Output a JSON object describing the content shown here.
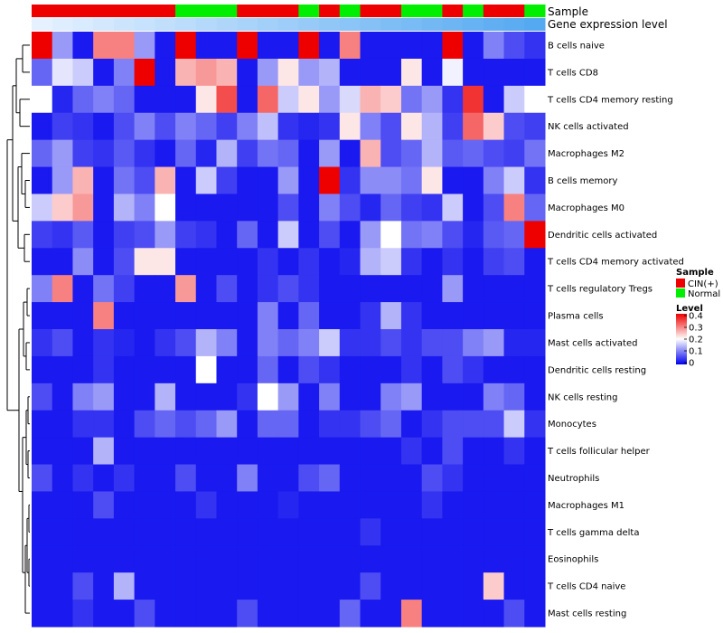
{
  "chart_data": {
    "type": "heatmap",
    "annotation_rows": [
      "Sample",
      "Gene expression level"
    ],
    "sample_groups": [
      "CIN(+)",
      "CIN(+)",
      "CIN(+)",
      "CIN(+)",
      "CIN(+)",
      "CIN(+)",
      "CIN(+)",
      "Normal",
      "Normal",
      "Normal",
      "CIN(+)",
      "CIN(+)",
      "CIN(+)",
      "Normal",
      "CIN(+)",
      "Normal",
      "CIN(+)",
      "CIN(+)",
      "Normal",
      "Normal",
      "CIN(+)",
      "Normal",
      "CIN(+)",
      "CIN(+)",
      "Normal"
    ],
    "expression_level": [
      0.02,
      0.06,
      0.1,
      0.14,
      0.18,
      0.22,
      0.26,
      0.3,
      0.34,
      0.38,
      0.42,
      0.46,
      0.5,
      0.54,
      0.58,
      0.62,
      0.66,
      0.7,
      0.74,
      0.78,
      0.82,
      0.86,
      0.9,
      0.94,
      0.98
    ],
    "rows": [
      "B cells naive",
      "T cells CD8",
      "T cells CD4 memory resting",
      "NK cells activated",
      "Macrophages M2",
      "B cells memory",
      "Macrophages M0",
      "Dendritic cells activated",
      "T cells CD4 memory activated",
      "T cells regulatory  Tregs",
      "Plasma cells",
      "Mast cells activated",
      "Dendritic cells resting",
      "NK cells resting",
      "Monocytes",
      "T cells follicular helper",
      "Neutrophils",
      "Macrophages M1",
      "T cells gamma delta",
      "Eosinophils",
      "T cells CD4 naive",
      "Mast cells resting"
    ],
    "values": [
      [
        0.4,
        0.12,
        0.02,
        0.3,
        0.3,
        0.12,
        0.02,
        0.4,
        0.02,
        0.02,
        0.4,
        0.02,
        0.02,
        0.4,
        0.02,
        0.3,
        0.02,
        0.02,
        0.02,
        0.02,
        0.4,
        0.02,
        0.1,
        0.06,
        0.04
      ],
      [
        0.08,
        0.18,
        0.16,
        0.02,
        0.1,
        0.4,
        0.02,
        0.26,
        0.28,
        0.26,
        0.02,
        0.12,
        0.22,
        0.12,
        0.14,
        0.02,
        0.02,
        0.02,
        0.22,
        0.02,
        0.19,
        0.02,
        0.02,
        0.02,
        0.02
      ],
      [
        0.2,
        0.03,
        0.08,
        0.1,
        0.08,
        0.02,
        0.02,
        0.02,
        0.22,
        0.34,
        0.02,
        0.32,
        0.16,
        0.22,
        0.12,
        0.17,
        0.26,
        0.24,
        0.09,
        0.12,
        0.04,
        0.36,
        0.02,
        0.16,
        0.2
      ],
      [
        0.02,
        0.05,
        0.04,
        0.02,
        0.06,
        0.1,
        0.06,
        0.1,
        0.08,
        0.05,
        0.1,
        0.15,
        0.04,
        0.03,
        0.04,
        0.22,
        0.1,
        0.06,
        0.22,
        0.14,
        0.05,
        0.32,
        0.24,
        0.06,
        0.05
      ],
      [
        0.08,
        0.12,
        0.05,
        0.04,
        0.07,
        0.04,
        0.02,
        0.08,
        0.03,
        0.14,
        0.05,
        0.09,
        0.08,
        0.02,
        0.12,
        0.02,
        0.26,
        0.06,
        0.08,
        0.14,
        0.07,
        0.08,
        0.06,
        0.05,
        0.09
      ],
      [
        0.02,
        0.12,
        0.26,
        0.02,
        0.09,
        0.06,
        0.26,
        0.02,
        0.16,
        0.05,
        0.02,
        0.02,
        0.12,
        0.02,
        0.4,
        0.04,
        0.11,
        0.11,
        0.09,
        0.22,
        0.02,
        0.02,
        0.1,
        0.16,
        0.04
      ],
      [
        0.16,
        0.24,
        0.28,
        0.02,
        0.14,
        0.1,
        0.2,
        0.02,
        0.02,
        0.02,
        0.02,
        0.02,
        0.06,
        0.02,
        0.1,
        0.06,
        0.03,
        0.08,
        0.05,
        0.04,
        0.16,
        0.02,
        0.06,
        0.3,
        0.08
      ],
      [
        0.05,
        0.04,
        0.07,
        0.02,
        0.05,
        0.06,
        0.12,
        0.05,
        0.04,
        0.02,
        0.08,
        0.02,
        0.16,
        0.02,
        0.06,
        0.02,
        0.12,
        0.2,
        0.09,
        0.1,
        0.06,
        0.03,
        0.07,
        0.08,
        0.4
      ],
      [
        0.02,
        0.02,
        0.11,
        0.02,
        0.06,
        0.22,
        0.22,
        0.02,
        0.02,
        0.02,
        0.02,
        0.04,
        0.02,
        0.04,
        0.02,
        0.03,
        0.14,
        0.16,
        0.04,
        0.02,
        0.04,
        0.02,
        0.05,
        0.06,
        0.02
      ],
      [
        0.1,
        0.3,
        0.02,
        0.09,
        0.05,
        0.02,
        0.02,
        0.28,
        0.02,
        0.06,
        0.02,
        0.04,
        0.06,
        0.04,
        0.02,
        0.02,
        0.02,
        0.02,
        0.02,
        0.02,
        0.12,
        0.02,
        0.02,
        0.02,
        0.02
      ],
      [
        0.02,
        0.02,
        0.02,
        0.3,
        0.02,
        0.02,
        0.02,
        0.02,
        0.02,
        0.02,
        0.02,
        0.1,
        0.02,
        0.08,
        0.02,
        0.02,
        0.04,
        0.14,
        0.04,
        0.02,
        0.02,
        0.02,
        0.02,
        0.02,
        0.02
      ],
      [
        0.04,
        0.06,
        0.02,
        0.04,
        0.03,
        0.02,
        0.04,
        0.06,
        0.14,
        0.1,
        0.02,
        0.1,
        0.08,
        0.1,
        0.16,
        0.04,
        0.04,
        0.06,
        0.04,
        0.06,
        0.06,
        0.1,
        0.12,
        0.03,
        0.03
      ],
      [
        0.02,
        0.02,
        0.02,
        0.04,
        0.02,
        0.02,
        0.02,
        0.02,
        0.2,
        0.02,
        0.02,
        0.08,
        0.02,
        0.06,
        0.04,
        0.02,
        0.02,
        0.02,
        0.04,
        0.02,
        0.06,
        0.04,
        0.02,
        0.02,
        0.02
      ],
      [
        0.06,
        0.02,
        0.1,
        0.12,
        0.02,
        0.02,
        0.14,
        0.02,
        0.02,
        0.02,
        0.04,
        0.2,
        0.12,
        0.02,
        0.1,
        0.02,
        0.02,
        0.1,
        0.12,
        0.02,
        0.02,
        0.02,
        0.1,
        0.08,
        0.02
      ],
      [
        0.02,
        0.02,
        0.04,
        0.04,
        0.02,
        0.06,
        0.08,
        0.06,
        0.08,
        0.12,
        0.02,
        0.08,
        0.08,
        0.02,
        0.04,
        0.04,
        0.06,
        0.08,
        0.02,
        0.04,
        0.06,
        0.06,
        0.06,
        0.16,
        0.04
      ],
      [
        0.02,
        0.02,
        0.02,
        0.14,
        0.02,
        0.02,
        0.02,
        0.02,
        0.02,
        0.02,
        0.02,
        0.02,
        0.02,
        0.02,
        0.02,
        0.02,
        0.02,
        0.02,
        0.04,
        0.02,
        0.06,
        0.02,
        0.02,
        0.04,
        0.02
      ],
      [
        0.06,
        0.02,
        0.04,
        0.02,
        0.04,
        0.02,
        0.02,
        0.06,
        0.02,
        0.02,
        0.1,
        0.02,
        0.02,
        0.06,
        0.08,
        0.02,
        0.02,
        0.02,
        0.02,
        0.06,
        0.04,
        0.02,
        0.02,
        0.02,
        0.02
      ],
      [
        0.02,
        0.02,
        0.02,
        0.06,
        0.02,
        0.02,
        0.02,
        0.02,
        0.04,
        0.02,
        0.02,
        0.02,
        0.03,
        0.02,
        0.02,
        0.02,
        0.02,
        0.02,
        0.02,
        0.04,
        0.02,
        0.02,
        0.02,
        0.02,
        0.02
      ],
      [
        0.02,
        0.02,
        0.02,
        0.02,
        0.02,
        0.02,
        0.02,
        0.02,
        0.02,
        0.02,
        0.02,
        0.02,
        0.02,
        0.02,
        0.02,
        0.02,
        0.04,
        0.02,
        0.02,
        0.02,
        0.02,
        0.02,
        0.02,
        0.02,
        0.02
      ],
      [
        0.02,
        0.02,
        0.02,
        0.02,
        0.02,
        0.02,
        0.02,
        0.02,
        0.02,
        0.02,
        0.02,
        0.02,
        0.02,
        0.02,
        0.02,
        0.02,
        0.02,
        0.02,
        0.02,
        0.02,
        0.02,
        0.02,
        0.02,
        0.02,
        0.02
      ],
      [
        0.02,
        0.02,
        0.06,
        0.02,
        0.14,
        0.02,
        0.02,
        0.02,
        0.02,
        0.02,
        0.02,
        0.02,
        0.02,
        0.02,
        0.02,
        0.02,
        0.06,
        0.02,
        0.02,
        0.02,
        0.02,
        0.02,
        0.24,
        0.02,
        0.02
      ],
      [
        0.02,
        0.02,
        0.04,
        0.02,
        0.02,
        0.06,
        0.02,
        0.02,
        0.02,
        0.02,
        0.06,
        0.02,
        0.02,
        0.02,
        0.02,
        0.08,
        0.02,
        0.02,
        0.3,
        0.02,
        0.02,
        0.02,
        0.02,
        0.06,
        0.02
      ]
    ],
    "legend_sample": {
      "title": "Sample",
      "items": [
        {
          "label": "CIN(+)",
          "color": "#ee0000"
        },
        {
          "label": "Normal",
          "color": "#00ee00"
        }
      ]
    },
    "legend_level": {
      "title": "Level",
      "ticks": [
        "0.4",
        "0.3",
        "0.2",
        "0.1",
        "0"
      ],
      "tick_values": [
        0.4,
        0.3,
        0.2,
        0.1,
        0
      ],
      "range": [
        0,
        0.4
      ]
    },
    "colors": {
      "low": "#0000ee",
      "mid": "#ffffff",
      "high": "#ee0000",
      "expr_low": "#e8f2ff",
      "expr_high": "#52a8f0"
    }
  }
}
